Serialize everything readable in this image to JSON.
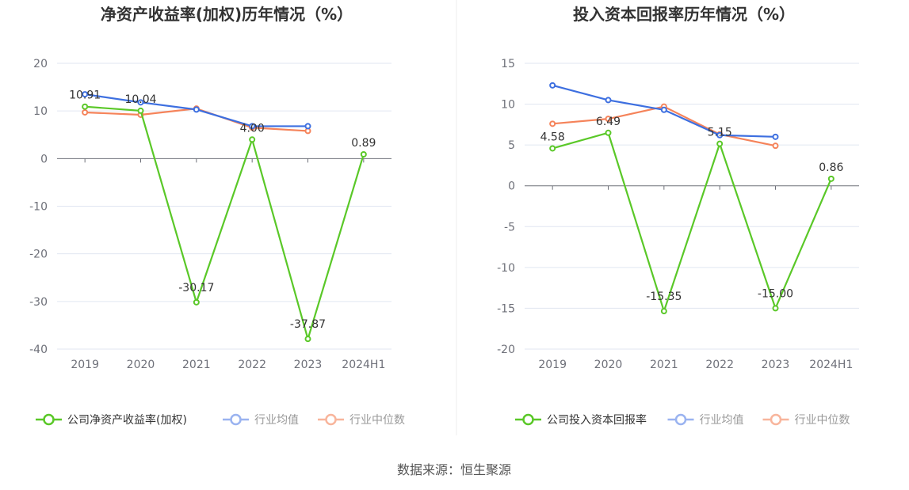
{
  "source": "数据来源：恒生聚源",
  "colors": {
    "company": "#5ac828",
    "avg": "#3d6fe0",
    "median": "#f5835a",
    "avg_legend": "#9ab3f0",
    "median_legend": "#f8b59c"
  },
  "chart_data": [
    {
      "type": "line",
      "title": "净资产收益率(加权)历年情况（%）",
      "categories": [
        "2019",
        "2020",
        "2021",
        "2022",
        "2023",
        "2024H1"
      ],
      "ylim": [
        -40,
        20
      ],
      "yticks": [
        20,
        10,
        0,
        -10,
        -20,
        -30,
        -40
      ],
      "legend_position": "bottom",
      "series": [
        {
          "name": "公司净资产收益率(加权)",
          "key": "company",
          "values": [
            10.91,
            10.04,
            -30.17,
            4.0,
            -37.87,
            0.89
          ],
          "labels": [
            "10.91",
            "10.04",
            "-30.17",
            "4.00",
            "-37.87",
            "0.89"
          ]
        },
        {
          "name": "行业均值",
          "key": "avg",
          "values": [
            13.5,
            11.8,
            10.3,
            6.8,
            6.8,
            null
          ]
        },
        {
          "name": "行业中位数",
          "key": "median",
          "values": [
            9.7,
            9.2,
            10.5,
            6.5,
            5.8,
            null
          ]
        }
      ]
    },
    {
      "type": "line",
      "title": "投入资本回报率历年情况（%）",
      "categories": [
        "2019",
        "2020",
        "2021",
        "2022",
        "2023",
        "2024H1"
      ],
      "ylim": [
        -20,
        15
      ],
      "yticks": [
        15,
        10,
        5,
        0,
        -5,
        -10,
        -15,
        -20
      ],
      "legend_position": "bottom",
      "series": [
        {
          "name": "公司投入资本回报率",
          "key": "company",
          "values": [
            4.58,
            6.49,
            -15.35,
            5.15,
            -15.0,
            0.86
          ],
          "labels": [
            "4.58",
            "6.49",
            "-15.35",
            "5.15",
            "-15.00",
            "0.86"
          ]
        },
        {
          "name": "行业均值",
          "key": "avg",
          "values": [
            12.3,
            10.5,
            9.3,
            6.2,
            6.0,
            null
          ]
        },
        {
          "name": "行业中位数",
          "key": "median",
          "values": [
            7.6,
            8.2,
            9.7,
            6.3,
            4.9,
            null
          ]
        }
      ]
    }
  ]
}
